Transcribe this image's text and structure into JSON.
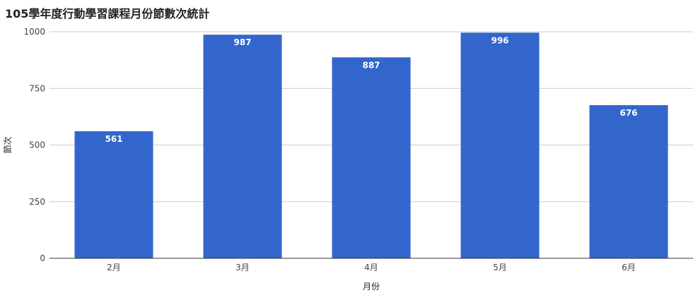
{
  "chart_data": {
    "type": "bar",
    "title": "105學年度行動學習課程月份節數次統計",
    "xlabel": "月份",
    "ylabel": "節次",
    "categories": [
      "2月",
      "3月",
      "4月",
      "5月",
      "6月"
    ],
    "values": [
      561,
      987,
      887,
      996,
      676
    ],
    "ylim": [
      0,
      1000
    ],
    "yticks": [
      0,
      250,
      500,
      750,
      1000
    ],
    "grid": true,
    "bar_color": "#3366cc",
    "data_labels": true
  }
}
